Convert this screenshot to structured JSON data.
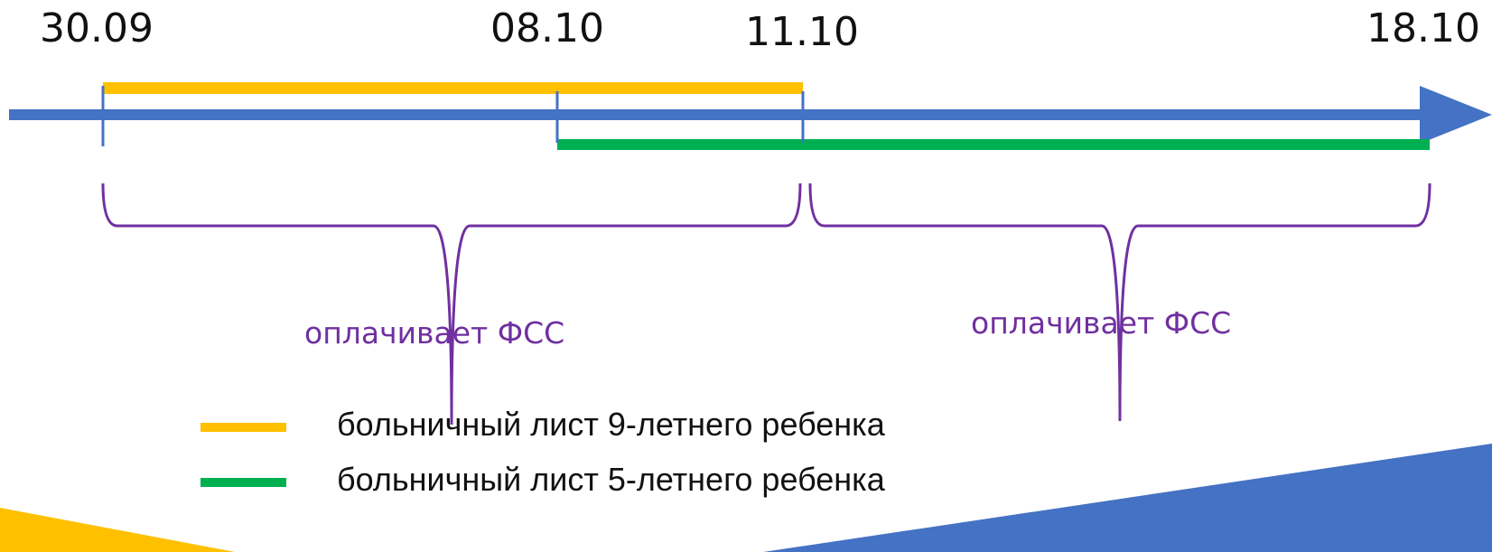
{
  "diagram": {
    "dates": [
      "30.09",
      "08.10",
      "11.10",
      "18.10"
    ],
    "payers": [
      "оплачивает ФСС",
      "оплачивает ФСС"
    ],
    "legend": [
      {
        "text": "больничный лист 9-летнего ребенка",
        "color": "#ffc000"
      },
      {
        "text": "больничный лист 5-летнего ребенка",
        "color": "#00b050"
      }
    ],
    "colors": {
      "timeline_arrow": "#4472c4",
      "brace": "#7030a0",
      "corner_yellow": "#ffc000",
      "corner_blue": "#4472c4"
    }
  }
}
